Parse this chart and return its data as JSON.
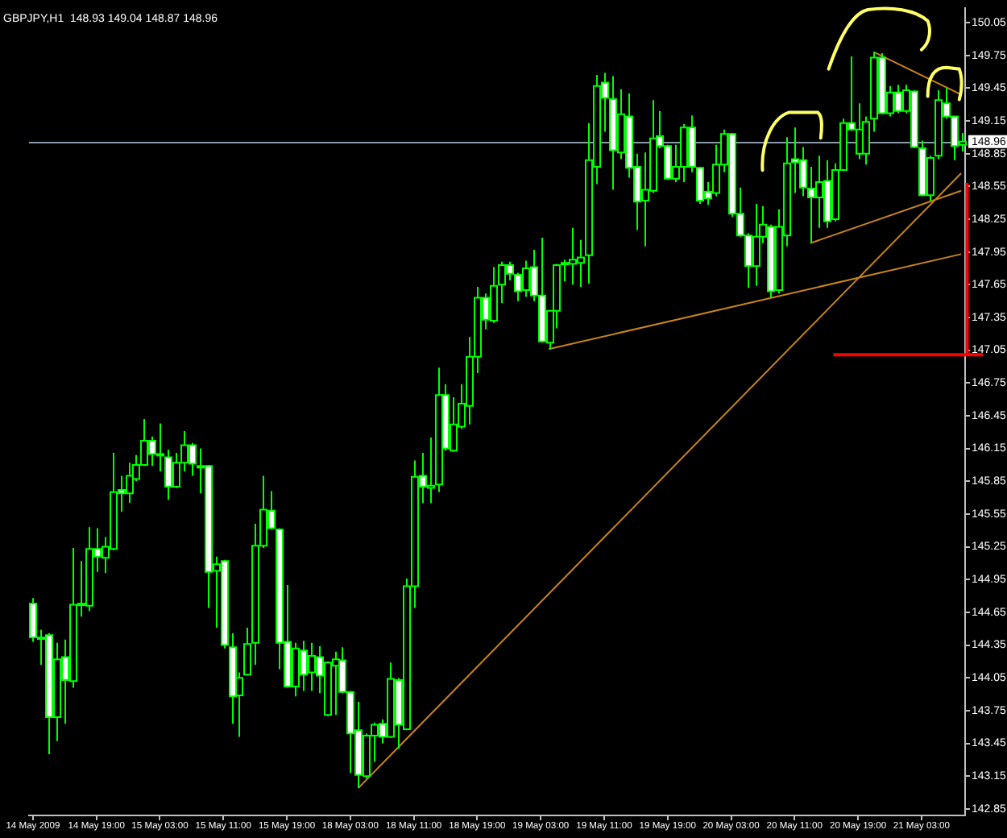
{
  "chart_data": {
    "type": "candlestick",
    "title": "GBPJPY,H1  148.93 149.04 148.87 148.96",
    "color": "#00ff00",
    "categories": [
      "14 May 2009",
      null,
      null,
      null,
      null,
      null,
      null,
      null,
      "14 May 19:00",
      null,
      null,
      null,
      null,
      null,
      null,
      null,
      "15 May 03:00",
      null,
      null,
      null,
      null,
      null,
      null,
      null,
      "15 May 11:00",
      null,
      null,
      null,
      null,
      null,
      null,
      null,
      "15 May 19:00",
      null,
      null,
      null,
      null,
      null,
      null,
      null,
      "18 May 03:00",
      null,
      null,
      null,
      null,
      null,
      null,
      null,
      "18 May 11:00",
      null,
      null,
      null,
      null,
      null,
      null,
      null,
      "18 May 19:00",
      null,
      null,
      null,
      null,
      null,
      null,
      null,
      "19 May 03:00",
      null,
      null,
      null,
      null,
      null,
      null,
      null,
      "19 May 11:00",
      null,
      null,
      null,
      null,
      null,
      null,
      null,
      "19 May 19:00",
      null,
      null,
      null,
      null,
      null,
      null,
      null,
      "20 May 03:00",
      null,
      null,
      null,
      null,
      null,
      null,
      null,
      "20 May 11:00",
      null,
      null,
      null,
      null,
      null,
      null,
      null,
      "20 May 19:00",
      null,
      null,
      null,
      null,
      null,
      null,
      null,
      "21 May 03:00",
      null,
      null,
      null,
      null,
      null
    ],
    "ohlc": [
      [
        144.73,
        144.78,
        144.38,
        144.42
      ],
      [
        144.42,
        144.49,
        144.17,
        144.42
      ],
      [
        144.44,
        144.46,
        143.35,
        143.69
      ],
      [
        143.69,
        144.37,
        143.47,
        144.22
      ],
      [
        144.24,
        144.4,
        143.63,
        144.03
      ],
      [
        144.02,
        145.24,
        143.96,
        144.72
      ],
      [
        144.73,
        145.12,
        144.61,
        144.73
      ],
      [
        144.71,
        145.43,
        144.66,
        145.23
      ],
      [
        145.23,
        145.42,
        145.02,
        145.16
      ],
      [
        145.15,
        145.34,
        145.01,
        145.25
      ],
      [
        145.23,
        146.11,
        145.22,
        145.75
      ],
      [
        145.77,
        145.9,
        145.57,
        145.74
      ],
      [
        145.74,
        146.02,
        145.65,
        145.9
      ],
      [
        145.87,
        146.09,
        145.85,
        146.0
      ],
      [
        146.0,
        146.42,
        145.99,
        146.22
      ],
      [
        146.22,
        146.26,
        145.99,
        146.1
      ],
      [
        146.1,
        146.38,
        145.94,
        146.1
      ],
      [
        146.07,
        146.14,
        145.68,
        145.8
      ],
      [
        145.8,
        146.11,
        145.79,
        146.02
      ],
      [
        146.02,
        146.31,
        145.94,
        146.18
      ],
      [
        146.18,
        146.2,
        145.9,
        146.01
      ],
      [
        145.99,
        146.15,
        145.74,
        145.99
      ],
      [
        145.99,
        146.0,
        144.69,
        145.02
      ],
      [
        145.03,
        145.16,
        144.51,
        145.09
      ],
      [
        145.12,
        145.13,
        144.32,
        144.35
      ],
      [
        144.33,
        144.46,
        143.63,
        143.88
      ],
      [
        143.89,
        144.1,
        143.51,
        144.05
      ],
      [
        144.08,
        144.51,
        144.07,
        144.36
      ],
      [
        144.37,
        145.46,
        144.17,
        145.26
      ],
      [
        145.26,
        145.9,
        145.24,
        145.59
      ],
      [
        145.58,
        145.76,
        145.41,
        145.42
      ],
      [
        145.41,
        145.42,
        144.13,
        144.37
      ],
      [
        144.38,
        144.9,
        143.96,
        143.97
      ],
      [
        143.97,
        144.37,
        143.88,
        144.32
      ],
      [
        144.3,
        144.39,
        143.93,
        144.08
      ],
      [
        144.1,
        144.37,
        143.93,
        144.25
      ],
      [
        144.24,
        144.34,
        143.91,
        144.07
      ],
      [
        143.71,
        144.2,
        143.7,
        144.19
      ],
      [
        144.16,
        144.29,
        143.71,
        144.22
      ],
      [
        144.21,
        144.33,
        143.91,
        143.92
      ],
      [
        143.92,
        143.93,
        143.18,
        143.54
      ],
      [
        143.57,
        143.83,
        143.04,
        143.16
      ],
      [
        143.15,
        143.54,
        143.13,
        143.52
      ],
      [
        143.52,
        143.64,
        143.28,
        143.62
      ],
      [
        143.63,
        143.67,
        143.45,
        143.51
      ],
      [
        143.51,
        144.19,
        143.5,
        144.04
      ],
      [
        144.03,
        144.05,
        143.4,
        143.62
      ],
      [
        143.58,
        144.96,
        143.57,
        144.89
      ],
      [
        144.89,
        146.04,
        144.69,
        145.89
      ],
      [
        145.9,
        146.11,
        145.65,
        145.8
      ],
      [
        145.79,
        146.25,
        145.65,
        145.81
      ],
      [
        145.82,
        146.89,
        145.75,
        146.64
      ],
      [
        146.64,
        146.74,
        146.13,
        146.15
      ],
      [
        146.13,
        146.62,
        146.12,
        146.37
      ],
      [
        146.35,
        146.74,
        146.33,
        146.56
      ],
      [
        146.54,
        147.17,
        146.37,
        146.99
      ],
      [
        146.99,
        147.63,
        146.84,
        147.53
      ],
      [
        147.53,
        147.57,
        147.24,
        147.33
      ],
      [
        147.32,
        147.81,
        147.3,
        147.64
      ],
      [
        147.65,
        147.86,
        147.48,
        147.83
      ],
      [
        147.83,
        147.86,
        147.69,
        147.75
      ],
      [
        147.74,
        147.76,
        147.5,
        147.59
      ],
      [
        147.6,
        147.87,
        147.54,
        147.8
      ],
      [
        147.81,
        147.97,
        147.5,
        147.55
      ],
      [
        147.55,
        148.08,
        147.12,
        147.13
      ],
      [
        147.12,
        147.42,
        147.06,
        147.41
      ],
      [
        147.41,
        147.84,
        147.25,
        147.83
      ],
      [
        147.84,
        147.88,
        147.68,
        147.85
      ],
      [
        147.84,
        148.17,
        147.65,
        147.88
      ],
      [
        147.85,
        148.06,
        147.63,
        147.9
      ],
      [
        147.92,
        149.13,
        147.66,
        148.79
      ],
      [
        148.73,
        149.57,
        148.57,
        149.47
      ],
      [
        149.5,
        149.59,
        149.05,
        149.36
      ],
      [
        149.35,
        149.56,
        148.52,
        148.88
      ],
      [
        148.86,
        149.44,
        148.8,
        149.21
      ],
      [
        149.19,
        149.4,
        148.63,
        148.72
      ],
      [
        148.73,
        148.85,
        148.15,
        148.41
      ],
      [
        148.42,
        148.86,
        148.0,
        148.52
      ],
      [
        148.51,
        149.34,
        148.49,
        148.99
      ],
      [
        149.01,
        149.24,
        148.9,
        148.92
      ],
      [
        148.92,
        148.93,
        148.61,
        148.62
      ],
      [
        148.62,
        148.93,
        148.59,
        148.73
      ],
      [
        148.73,
        149.12,
        148.59,
        149.09
      ],
      [
        149.09,
        149.2,
        148.68,
        148.73
      ],
      [
        148.72,
        148.73,
        148.39,
        148.42
      ],
      [
        148.5,
        148.59,
        148.38,
        148.44
      ],
      [
        148.49,
        148.93,
        148.46,
        148.75
      ],
      [
        148.75,
        149.07,
        148.68,
        149.03
      ],
      [
        149.03,
        149.04,
        148.27,
        148.3
      ],
      [
        148.3,
        148.54,
        148.09,
        148.1
      ],
      [
        148.1,
        148.12,
        147.62,
        147.82
      ],
      [
        147.82,
        148.39,
        147.64,
        148.09
      ],
      [
        148.09,
        148.37,
        148.03,
        148.2
      ],
      [
        148.18,
        148.2,
        147.53,
        147.59
      ],
      [
        147.6,
        148.34,
        147.57,
        148.18
      ],
      [
        148.1,
        149.0,
        148.0,
        148.76
      ],
      [
        148.8,
        149.09,
        148.49,
        148.77
      ],
      [
        148.79,
        148.91,
        148.46,
        148.54
      ],
      [
        148.53,
        148.73,
        148.03,
        148.45
      ],
      [
        148.45,
        148.83,
        148.17,
        148.59
      ],
      [
        148.6,
        148.79,
        148.17,
        148.23
      ],
      [
        148.25,
        148.76,
        148.23,
        148.7
      ],
      [
        148.7,
        149.17,
        148.69,
        149.13
      ],
      [
        149.13,
        149.74,
        149.06,
        149.07
      ],
      [
        148.85,
        149.31,
        148.8,
        149.07
      ],
      [
        148.85,
        149.19,
        148.75,
        149.14
      ],
      [
        149.17,
        149.78,
        149.05,
        149.73
      ],
      [
        149.73,
        149.77,
        149.21,
        149.22
      ],
      [
        149.22,
        149.47,
        149.19,
        149.41
      ],
      [
        149.41,
        149.48,
        149.22,
        149.24
      ],
      [
        149.24,
        149.48,
        149.22,
        149.43
      ],
      [
        149.42,
        149.43,
        148.9,
        148.91
      ],
      [
        148.9,
        148.97,
        148.46,
        148.47
      ],
      [
        148.47,
        148.83,
        148.42,
        148.81
      ],
      [
        148.83,
        149.43,
        148.8,
        149.34
      ],
      [
        149.31,
        149.45,
        149.17,
        149.19
      ],
      [
        149.19,
        149.19,
        148.79,
        148.92
      ],
      [
        148.93,
        149.04,
        148.87,
        148.96
      ]
    ],
    "series": [
      {
        "type": "line",
        "color": "#c8841c",
        "values": [
          null,
          null,
          null,
          null,
          null,
          null,
          null,
          null,
          null,
          null,
          null,
          null,
          null,
          null,
          null,
          null,
          null,
          null,
          null,
          null,
          null,
          null,
          null,
          null,
          null,
          null,
          null,
          null,
          null,
          null,
          null,
          null,
          null,
          null,
          null,
          null,
          null,
          null,
          null,
          null,
          null,
          143.04,
          null,
          null,
          null,
          null,
          null,
          null,
          null,
          null,
          null,
          null,
          null,
          null,
          null,
          null,
          null,
          null,
          null,
          null,
          null,
          null,
          null,
          null,
          null,
          null,
          null,
          null,
          null,
          null,
          null,
          null,
          null,
          null,
          null,
          null,
          null,
          null,
          null,
          null,
          null,
          null,
          null,
          null,
          null,
          null,
          null,
          null,
          null,
          null,
          null,
          null,
          null,
          null,
          null,
          null,
          null,
          null,
          null,
          null,
          null,
          null,
          null,
          null,
          null,
          null,
          null,
          null,
          null,
          null,
          null,
          null,
          null,
          null,
          null,
          null,
          null,
          148.67
        ]
      },
      {
        "type": "line",
        "color": "#c8841c",
        "values": [
          null,
          null,
          null,
          null,
          null,
          null,
          null,
          null,
          null,
          null,
          null,
          null,
          null,
          null,
          null,
          null,
          null,
          null,
          null,
          null,
          null,
          null,
          null,
          null,
          null,
          null,
          null,
          null,
          null,
          null,
          null,
          null,
          null,
          null,
          null,
          null,
          null,
          null,
          null,
          null,
          null,
          null,
          null,
          null,
          null,
          null,
          null,
          null,
          null,
          null,
          null,
          null,
          null,
          null,
          null,
          null,
          null,
          null,
          null,
          null,
          null,
          null,
          null,
          null,
          null,
          147.06,
          null,
          null,
          null,
          null,
          null,
          null,
          null,
          null,
          null,
          null,
          null,
          null,
          null,
          null,
          null,
          null,
          null,
          null,
          null,
          null,
          null,
          null,
          null,
          null,
          null,
          null,
          null,
          null,
          null,
          null,
          null,
          null,
          null,
          null,
          null,
          null,
          null,
          null,
          null,
          null,
          null,
          null,
          null,
          null,
          null,
          null,
          null,
          null,
          null,
          null,
          null,
          147.93
        ]
      },
      {
        "type": "line",
        "color": "#c8841c",
        "values": [
          null,
          null,
          null,
          null,
          null,
          null,
          null,
          null,
          null,
          null,
          null,
          null,
          null,
          null,
          null,
          null,
          null,
          null,
          null,
          null,
          null,
          null,
          null,
          null,
          null,
          null,
          null,
          null,
          null,
          null,
          null,
          null,
          null,
          null,
          null,
          null,
          null,
          null,
          null,
          null,
          null,
          null,
          null,
          null,
          null,
          null,
          null,
          null,
          null,
          null,
          null,
          null,
          null,
          null,
          null,
          null,
          null,
          null,
          null,
          null,
          null,
          null,
          null,
          null,
          null,
          null,
          null,
          null,
          null,
          null,
          null,
          null,
          null,
          null,
          null,
          null,
          null,
          null,
          null,
          null,
          null,
          null,
          null,
          null,
          null,
          null,
          null,
          null,
          null,
          null,
          null,
          null,
          null,
          null,
          null,
          null,
          null,
          null,
          148.03,
          null,
          null,
          null,
          null,
          null,
          null,
          null,
          null,
          null,
          null,
          null,
          null,
          null,
          null,
          null,
          null,
          null,
          null,
          148.51
        ]
      },
      {
        "type": "line",
        "color": "#c8841c",
        "values": [
          null,
          null,
          null,
          null,
          null,
          null,
          null,
          null,
          null,
          null,
          null,
          null,
          null,
          null,
          null,
          null,
          null,
          null,
          null,
          null,
          null,
          null,
          null,
          null,
          null,
          null,
          null,
          null,
          null,
          null,
          null,
          null,
          null,
          null,
          null,
          null,
          null,
          null,
          null,
          null,
          null,
          null,
          null,
          null,
          null,
          null,
          null,
          null,
          null,
          null,
          null,
          null,
          null,
          null,
          null,
          null,
          null,
          null,
          null,
          null,
          null,
          null,
          null,
          null,
          null,
          null,
          null,
          null,
          null,
          null,
          null,
          null,
          null,
          null,
          null,
          null,
          null,
          null,
          null,
          null,
          null,
          null,
          null,
          null,
          null,
          null,
          null,
          null,
          null,
          null,
          null,
          null,
          null,
          null,
          null,
          null,
          null,
          null,
          null,
          null,
          null,
          null,
          null,
          null,
          null,
          null,
          149.78,
          null,
          null,
          null,
          null,
          null,
          null,
          null,
          null,
          null,
          null,
          149.39
        ]
      }
    ],
    "ref_lines": [
      {
        "axis": "y",
        "value": 148.96,
        "label": "148.96",
        "color": "#8a9aab"
      }
    ],
    "ylim": [
      142.79,
      150.18
    ],
    "yticks": [
      150.05,
      149.75,
      149.45,
      149.15,
      148.85,
      148.55,
      148.25,
      147.95,
      147.65,
      147.35,
      147.05,
      146.75,
      146.45,
      146.15,
      145.85,
      145.55,
      145.25,
      144.95,
      144.65,
      144.35,
      144.05,
      143.75,
      143.45,
      143.15,
      142.85
    ]
  }
}
